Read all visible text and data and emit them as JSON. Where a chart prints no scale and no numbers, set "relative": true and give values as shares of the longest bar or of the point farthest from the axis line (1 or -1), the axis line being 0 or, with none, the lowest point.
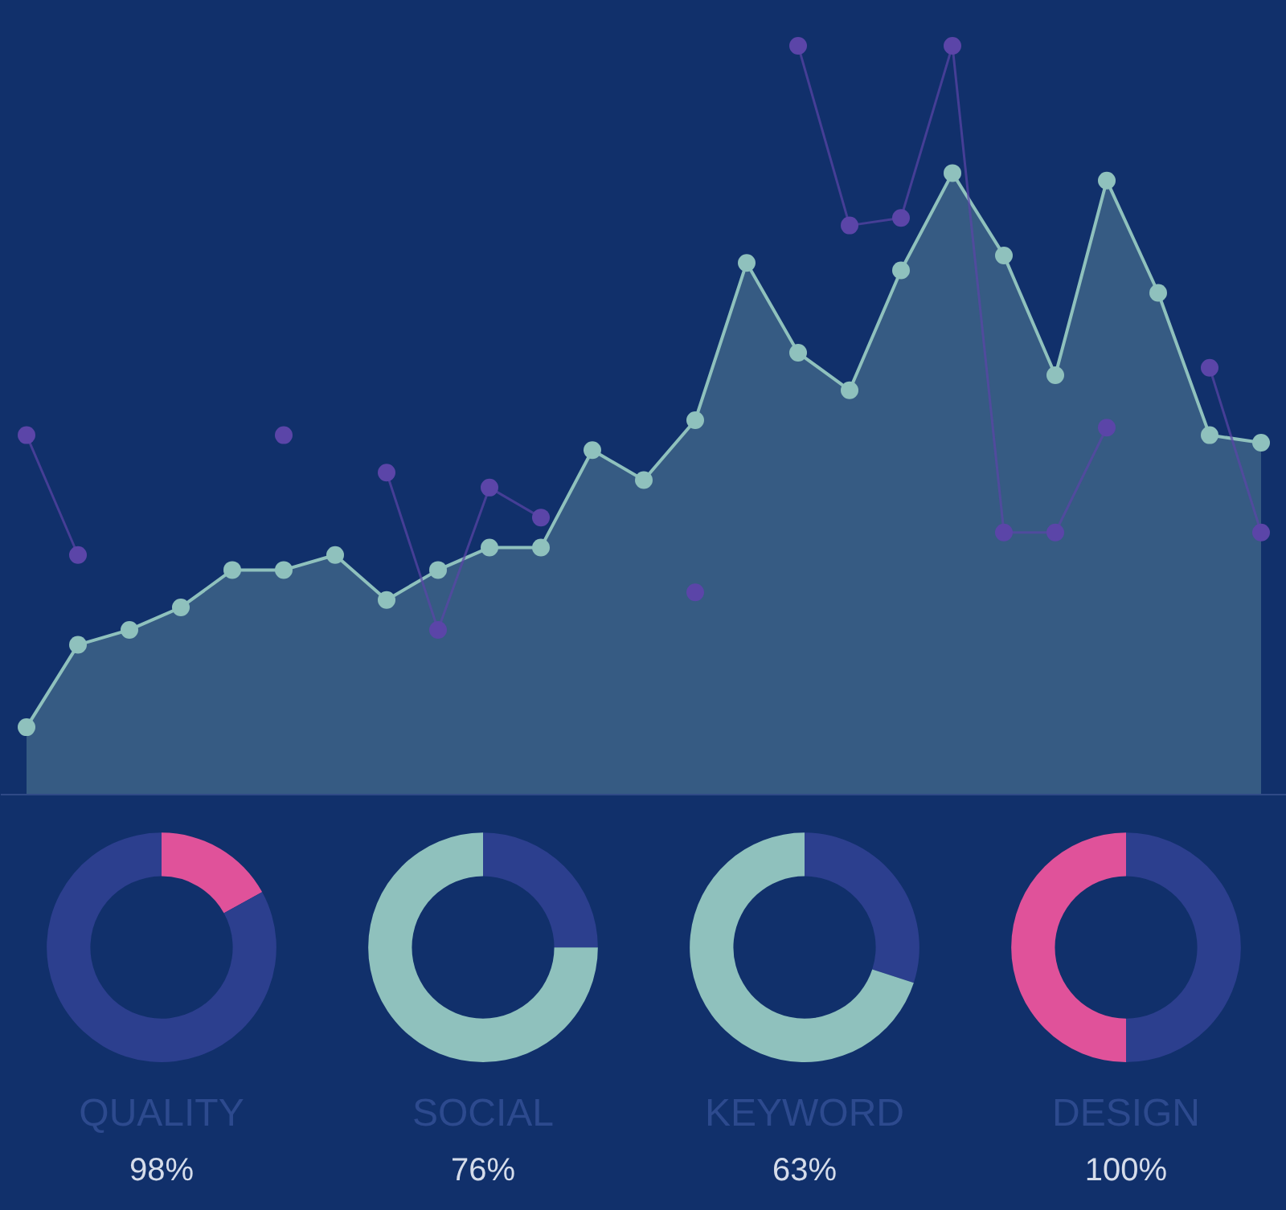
{
  "chart_data": [
    {
      "type": "area",
      "relative": true,
      "marker": "circle",
      "categories": [
        null,
        null,
        null,
        null,
        null,
        null,
        null,
        null,
        null,
        null,
        null,
        null,
        null,
        null,
        null,
        null,
        null,
        null,
        null,
        null,
        null,
        null,
        null,
        null,
        null
      ],
      "series": [
        {
          "type": "line",
          "color": "#5b45a8",
          "values": [
            0.48,
            0.32,
            null,
            null,
            null,
            0.48,
            null,
            0.43,
            0.22,
            0.41,
            0.37,
            null,
            null,
            0.27,
            null,
            1.0,
            0.76,
            0.77,
            1.0,
            0.35,
            0.35,
            0.49,
            null,
            0.57,
            0.35
          ]
        },
        {
          "type": "area",
          "color": "#8fc1bd",
          "values": [
            0.09,
            0.2,
            0.22,
            0.25,
            0.3,
            0.3,
            0.32,
            0.26,
            0.3,
            0.33,
            0.33,
            0.46,
            0.42,
            0.5,
            0.71,
            0.59,
            0.54,
            0.7,
            0.83,
            0.72,
            0.56,
            0.82,
            0.67,
            0.48,
            0.47
          ]
        }
      ]
    },
    {
      "type": "donut",
      "title": "QUALITY",
      "categories": [
        null,
        null
      ],
      "values": [
        17,
        83
      ],
      "colors": [
        "#e0529a",
        "#2c3f8e"
      ],
      "annotations": [
        "98%"
      ]
    },
    {
      "type": "donut",
      "title": "SOCIAL",
      "categories": [
        null,
        null
      ],
      "values": [
        25,
        75
      ],
      "colors": [
        "#2c3f8e",
        "#8fc1bd"
      ],
      "annotations": [
        "76%"
      ]
    },
    {
      "type": "donut",
      "title": "KEYWORD",
      "categories": [
        null,
        null
      ],
      "values": [
        30,
        70
      ],
      "colors": [
        "#2c3f8e",
        "#8fc1bd"
      ],
      "annotations": [
        "63%"
      ]
    },
    {
      "type": "donut",
      "title": "DESIGN",
      "categories": [
        null,
        null
      ],
      "values": [
        50,
        50
      ],
      "colors": [
        "#2c3f8e",
        "#e0529a"
      ],
      "annotations": [
        "100%"
      ]
    }
  ]
}
